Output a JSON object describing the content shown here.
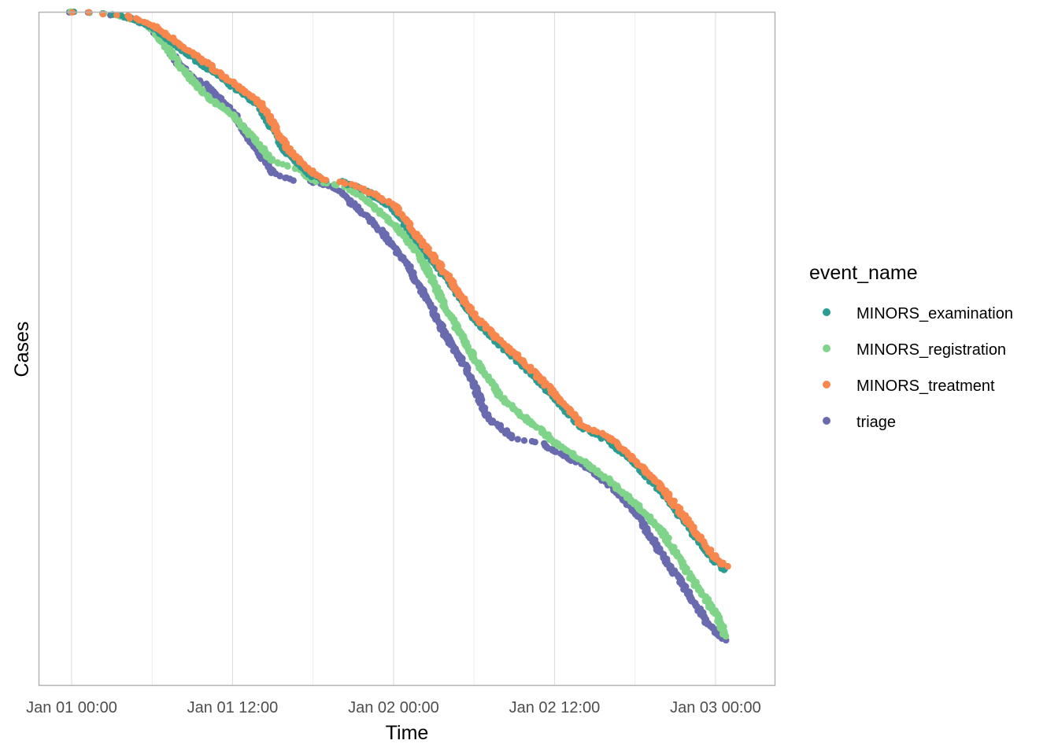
{
  "chart_data": {
    "type": "scatter",
    "title": "",
    "xlabel": "Time",
    "ylabel": "Cases",
    "x_axis": {
      "type": "time",
      "range": [
        "2017-01-01T-01:00",
        "2017-01-03T02:00"
      ],
      "ticks": [
        {
          "value": "2017-01-01T00:00",
          "label": "Jan 01 00:00"
        },
        {
          "value": "2017-01-01T12:00",
          "label": "Jan 01 12:00"
        },
        {
          "value": "2017-01-02T00:00",
          "label": "Jan 02 00:00"
        },
        {
          "value": "2017-01-02T12:00",
          "label": "Jan 02 12:00"
        },
        {
          "value": "2017-01-03T00:00",
          "label": "Jan 03 00:00"
        }
      ],
      "minor_gridlines": true
    },
    "y_axis": {
      "tick_labels_visible": false,
      "direction": "cases ordered top to bottom"
    },
    "grid": true,
    "legend": {
      "title": "event_name",
      "placement": "right",
      "entries": [
        {
          "name": "MINORS_examination",
          "color": "#2A9C91"
        },
        {
          "name": "MINORS_registration",
          "color": "#7FD48A"
        },
        {
          "name": "MINORS_treatment",
          "color": "#F8874E"
        },
        {
          "name": "triage",
          "color": "#6A6AAF"
        }
      ]
    },
    "series": [
      {
        "name": "triage",
        "color": "#6A6AAF",
        "x_hours": [
          0,
          2,
          4,
          5,
          6,
          7,
          8,
          9,
          9.9,
          12,
          13,
          14,
          15,
          16.5,
          17.5,
          19.6,
          20.5,
          22,
          23,
          24,
          25,
          26,
          27,
          28,
          29.5,
          31,
          33,
          35,
          36,
          37,
          38,
          39,
          40,
          42,
          44,
          46,
          47.5,
          48.8
        ],
        "y_cases": [
          0,
          2,
          6,
          12,
          22,
          42,
          67,
          82,
          92,
          127,
          155,
          182,
          205,
          215,
          215,
          223,
          238,
          260,
          277,
          300,
          320,
          352,
          382,
          415,
          455,
          515,
          543,
          548,
          558,
          568,
          575,
          586,
          600,
          635,
          690,
          740,
          780,
          800
        ]
      },
      {
        "name": "MINORS_registration",
        "color": "#7FD48A",
        "x_hours": [
          0,
          2,
          4,
          5,
          6,
          7,
          8,
          9,
          10,
          12,
          14,
          15,
          17,
          18,
          20.5,
          22,
          24,
          26,
          28,
          30,
          32,
          34,
          35,
          36,
          38,
          40,
          42,
          44,
          46,
          48,
          48.8
        ],
        "y_cases": [
          0,
          2,
          6,
          12,
          22,
          42,
          67,
          87,
          107,
          130,
          170,
          190,
          200,
          215,
          223,
          240,
          270,
          310,
          380,
          440,
          490,
          520,
          532,
          548,
          570,
          595,
          625,
          660,
          715,
          765,
          795
        ]
      },
      {
        "name": "MINORS_examination",
        "color": "#2A9C91",
        "x_hours": [
          0,
          2,
          4,
          6,
          8,
          10,
          12,
          14,
          15,
          16,
          17,
          18,
          19,
          20,
          22,
          24,
          26,
          28,
          30,
          32,
          34,
          36,
          37,
          38,
          40,
          42,
          44,
          46,
          48,
          48.8
        ],
        "y_cases": [
          0,
          2,
          6,
          20,
          45,
          70,
          95,
          120,
          150,
          180,
          195,
          210,
          215,
          215,
          228,
          250,
          295,
          340,
          390,
          425,
          455,
          490,
          510,
          528,
          545,
          575,
          610,
          655,
          700,
          710
        ]
      },
      {
        "name": "MINORS_treatment",
        "color": "#F8874E",
        "x_hours": [
          0,
          2,
          4,
          6,
          8,
          10,
          12,
          14,
          15,
          16,
          17,
          18,
          19,
          20,
          22,
          24,
          26,
          28,
          30,
          32,
          34,
          36,
          37,
          38,
          40,
          42,
          44,
          46,
          48,
          48.8
        ],
        "y_cases": [
          0,
          2,
          5,
          17,
          40,
          65,
          90,
          115,
          142,
          172,
          190,
          205,
          215,
          215,
          227,
          245,
          290,
          335,
          385,
          420,
          450,
          485,
          505,
          525,
          540,
          570,
          605,
          650,
          695,
          705
        ]
      }
    ]
  }
}
